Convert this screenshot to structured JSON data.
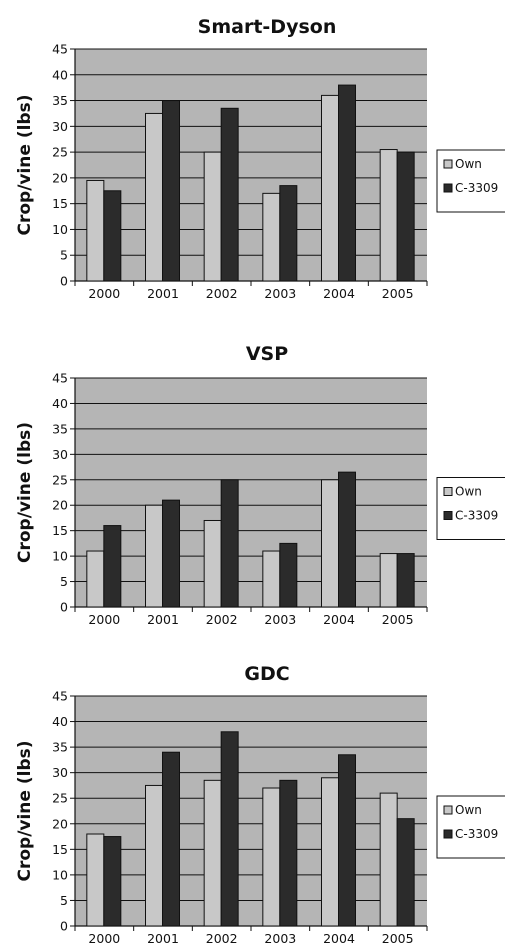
{
  "chart_data": [
    {
      "type": "bar",
      "title": "Smart-Dyson",
      "ylabel": "Crop/vine (lbs)",
      "xlabel": "",
      "categories": [
        "2000",
        "2001",
        "2002",
        "2003",
        "2004",
        "2005"
      ],
      "yticks": [
        "0",
        "5",
        "10",
        "15",
        "20",
        "25",
        "30",
        "35",
        "40",
        "45"
      ],
      "ylim": [
        0,
        45
      ],
      "grid": true,
      "legend_position": "right",
      "series": [
        {
          "name": "Own",
          "color": "#c8c8c8",
          "values": [
            19.5,
            32.5,
            25,
            17,
            36,
            25.5
          ]
        },
        {
          "name": "C-3309",
          "color": "#2b2b2b",
          "values": [
            17.5,
            35,
            33.5,
            18.5,
            38,
            25
          ]
        }
      ]
    },
    {
      "type": "bar",
      "title": "VSP",
      "ylabel": "Crop/vine (lbs)",
      "xlabel": "",
      "categories": [
        "2000",
        "2001",
        "2002",
        "2003",
        "2004",
        "2005"
      ],
      "yticks": [
        "0",
        "5",
        "10",
        "15",
        "20",
        "25",
        "30",
        "35",
        "40",
        "45"
      ],
      "ylim": [
        0,
        45
      ],
      "grid": true,
      "legend_position": "right",
      "series": [
        {
          "name": "Own",
          "color": "#c8c8c8",
          "values": [
            11,
            20,
            17,
            11,
            25,
            10.5
          ]
        },
        {
          "name": "C-3309",
          "color": "#2b2b2b",
          "values": [
            16,
            21,
            25,
            12.5,
            26.5,
            10.5
          ]
        }
      ]
    },
    {
      "type": "bar",
      "title": "GDC",
      "ylabel": "Crop/vine (lbs)",
      "xlabel": "",
      "categories": [
        "2000",
        "2001",
        "2002",
        "2003",
        "2004",
        "2005"
      ],
      "yticks": [
        "0",
        "5",
        "10",
        "15",
        "20",
        "25",
        "30",
        "35",
        "40",
        "45"
      ],
      "ylim": [
        0,
        45
      ],
      "grid": true,
      "legend_position": "right",
      "series": [
        {
          "name": "Own",
          "color": "#c8c8c8",
          "values": [
            18,
            27.5,
            28.5,
            27,
            29,
            26
          ]
        },
        {
          "name": "C-3309",
          "color": "#2b2b2b",
          "values": [
            17.5,
            34,
            38,
            28.5,
            33.5,
            21
          ]
        }
      ]
    }
  ],
  "colors": {
    "plot_background": "#b5b5b5",
    "gridline": "#111111",
    "bar_outline": "#111111"
  }
}
